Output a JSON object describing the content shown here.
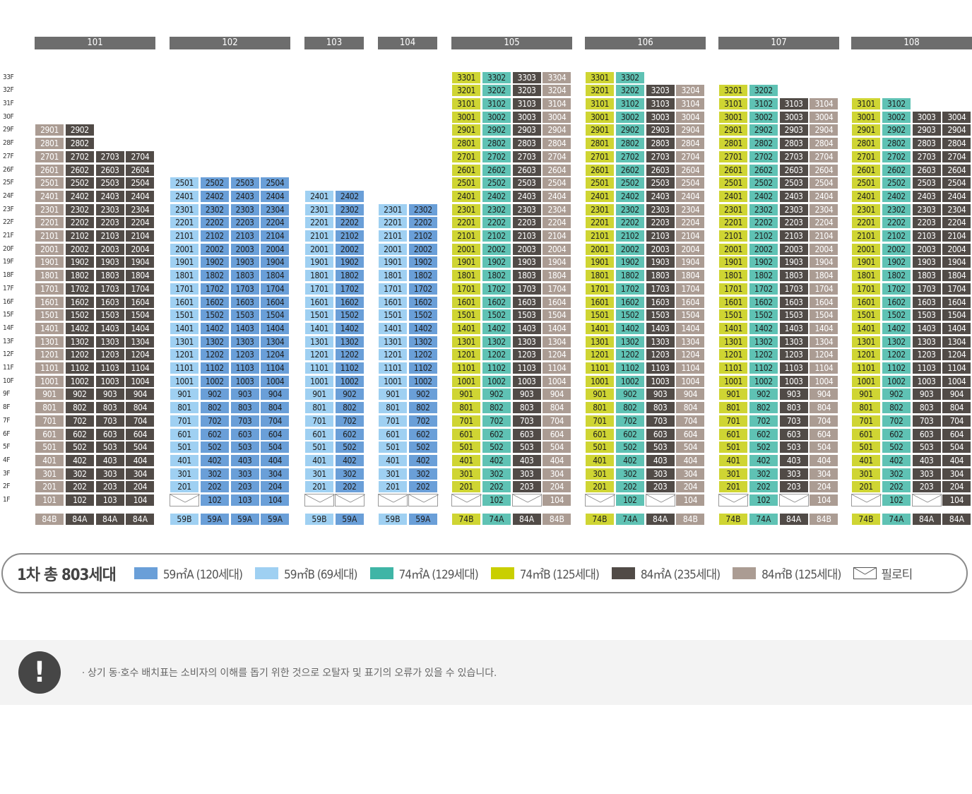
{
  "buildings": [
    {
      "name": "101",
      "floors": 29,
      "layout": [
        [
          1,
          29,
          "84B"
        ],
        [
          1,
          29,
          "84A"
        ],
        [
          1,
          27,
          "84A"
        ],
        [
          1,
          27,
          "84A"
        ]
      ],
      "types": [
        "84B",
        "84A",
        "84A",
        "84A"
      ]
    },
    {
      "name": "102",
      "floors": 25,
      "layout": [
        [
          2,
          25,
          "59B"
        ],
        [
          1,
          25,
          "59A"
        ],
        [
          1,
          25,
          "59A"
        ],
        [
          1,
          25,
          "59A"
        ]
      ],
      "types": [
        "59B",
        "59A",
        "59A",
        "59A"
      ]
    },
    {
      "name": "103",
      "floors": 24,
      "layout": [
        [
          2,
          24,
          "59B"
        ],
        [
          2,
          24,
          "59A"
        ]
      ],
      "types": [
        "59B",
        "59A"
      ]
    },
    {
      "name": "104",
      "floors": 23,
      "layout": [
        [
          2,
          23,
          "59B"
        ],
        [
          2,
          23,
          "59A"
        ]
      ],
      "types": [
        "59B",
        "59A"
      ]
    },
    {
      "name": "105",
      "floors": 33,
      "layout": [
        [
          2,
          33,
          "74B"
        ],
        [
          1,
          33,
          "74A"
        ],
        [
          2,
          33,
          "84A"
        ],
        [
          1,
          33,
          "84B"
        ]
      ],
      "types": [
        "74B",
        "74A",
        "84A",
        "84B"
      ]
    },
    {
      "name": "106",
      "floors": 33,
      "layout": [
        [
          2,
          33,
          "74B"
        ],
        [
          1,
          33,
          "74A"
        ],
        [
          2,
          32,
          "84A"
        ],
        [
          1,
          32,
          "84B"
        ]
      ],
      "types": [
        "74B",
        "74A",
        "84A",
        "84B"
      ]
    },
    {
      "name": "107",
      "floors": 32,
      "layout": [
        [
          2,
          32,
          "74B"
        ],
        [
          1,
          32,
          "74A"
        ],
        [
          2,
          31,
          "84A"
        ],
        [
          1,
          31,
          "84B"
        ]
      ],
      "types": [
        "74B",
        "74A",
        "84A",
        "84B"
      ]
    },
    {
      "name": "108",
      "floors": 31,
      "layout": [
        [
          2,
          31,
          "74B"
        ],
        [
          1,
          31,
          "74A"
        ],
        [
          2,
          30,
          "84A"
        ],
        [
          1,
          30,
          "84A"
        ]
      ],
      "types": [
        "74B",
        "74A",
        "84A",
        "84A"
      ]
    }
  ],
  "type_colors": {
    "59A": "#6a9fd8",
    "59B": "#9fd0f2",
    "74A": "#5fc2b4",
    "74B": "#cfd533",
    "84A": "#514b47",
    "84B": "#ab9c93"
  },
  "type_text_colors": {
    "59A": "#1e1e1e",
    "59B": "#1e1e1e",
    "74A": "#1e1e1e",
    "74B": "#1e1e1e",
    "84A": "#ffffff",
    "84B": "#ffffff"
  },
  "legend": {
    "title": "1차 총 803세대",
    "items": [
      {
        "label": "59㎡A (120세대)",
        "color": "#6a9fd8"
      },
      {
        "label": "59㎡B (69세대)",
        "color": "#9fd0f2"
      },
      {
        "label": "74㎡A (129세대)",
        "color": "#3fb5a6"
      },
      {
        "label": "74㎡B (125세대)",
        "color": "#c9cf00"
      },
      {
        "label": "84㎡A (235세대)",
        "color": "#514b47"
      },
      {
        "label": "84㎡B (125세대)",
        "color": "#ab9c93"
      }
    ],
    "piloti_label": "필로티"
  },
  "notice": {
    "icon": "exclamation-icon",
    "icon_text": "!",
    "text": "· 상기 동·호수 배치표는 소비자의 이해를 돕기 위한 것으로 오탈자 및 표기의 오류가 있을 수 있습니다."
  }
}
